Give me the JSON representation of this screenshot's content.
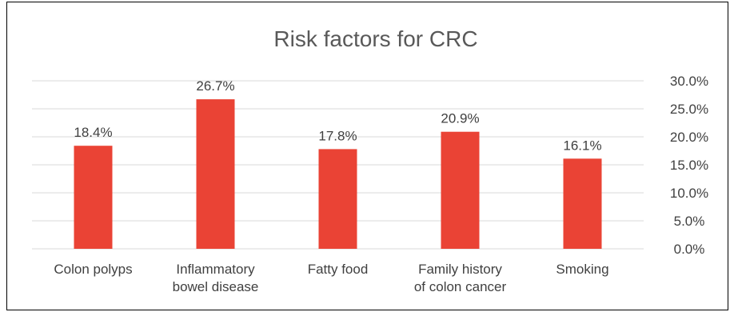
{
  "chart_data": {
    "type": "bar",
    "title": "Risk factors for CRC",
    "categories": [
      [
        "Colon polyps"
      ],
      [
        "Inflammatory",
        "bowel disease"
      ],
      [
        "Fatty food"
      ],
      [
        "Family history",
        "of colon cancer"
      ],
      [
        "Smoking"
      ]
    ],
    "values": [
      18.4,
      26.7,
      17.8,
      20.9,
      16.1
    ],
    "value_labels": [
      "18.4%",
      "26.7%",
      "17.8%",
      "20.9%",
      "16.1%"
    ],
    "ylim": [
      0,
      30
    ],
    "yticks": [
      0,
      5,
      10,
      15,
      20,
      25,
      30
    ],
    "ytick_labels": [
      "0.0%",
      "5.0%",
      "10.0%",
      "15.0%",
      "20.0%",
      "25.0%",
      "30.0%"
    ],
    "y_axis_side": "right",
    "grid": true,
    "legend": "none",
    "colors": {
      "bar": "#EA4335",
      "grid": "#D9D9D9",
      "text": "#404040",
      "title": "#595959"
    }
  }
}
